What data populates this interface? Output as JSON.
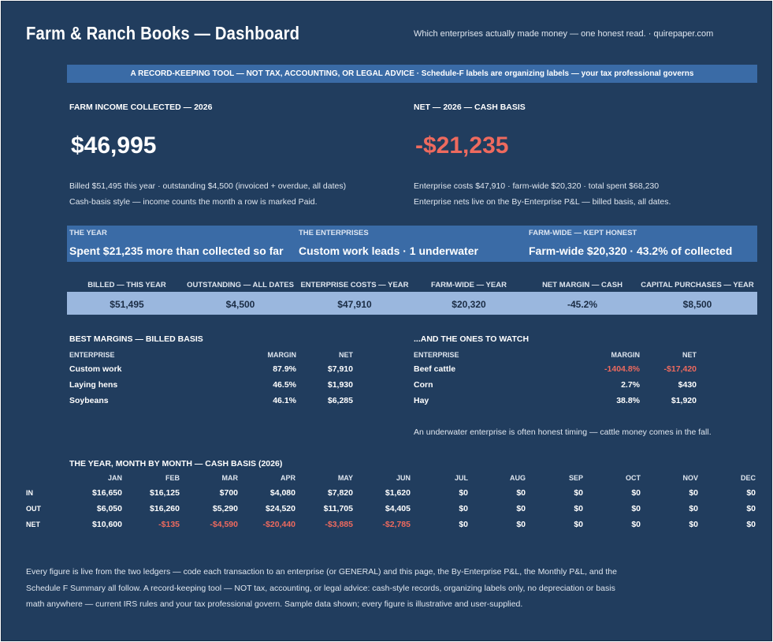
{
  "header": {
    "title": "Farm & Ranch Books — Dashboard",
    "tagline": "Which enterprises actually made money — one honest read.  ·  quirepaper.com"
  },
  "banner": "A RECORD-KEEPING TOOL — NOT TAX, ACCOUNTING, OR LEGAL ADVICE  ·  Schedule-F labels are organizing labels — your tax professional governs",
  "income": {
    "heading": "FARM INCOME COLLECTED — 2026",
    "value": "$46,995",
    "line1": "Billed $51,495 this year  ·  outstanding $4,500 (invoiced + overdue, all dates)",
    "line2": "Cash-basis style — income counts the month a row is marked Paid."
  },
  "net": {
    "heading": "NET — 2026 — CASH BASIS",
    "value": "-$21,235",
    "line1": "Enterprise costs $47,910  ·  farm-wide $20,320  ·  total spent $68,230",
    "line2": "Enterprise nets live on the By-Enterprise P&L — billed basis, all dates."
  },
  "strip": [
    {
      "label": "THE YEAR",
      "value": "Spent $21,235 more than collected so far"
    },
    {
      "label": "THE ENTERPRISES",
      "value": "Custom work leads · 1 underwater"
    },
    {
      "label": "FARM-WIDE — KEPT HONEST",
      "value": "Farm-wide $20,320 · 43.2% of collected"
    }
  ],
  "kpis": [
    {
      "label": "BILLED — THIS YEAR",
      "value": "$51,495"
    },
    {
      "label": "OUTSTANDING — ALL DATES",
      "value": "$4,500"
    },
    {
      "label": "ENTERPRISE COSTS — YEAR",
      "value": "$47,910"
    },
    {
      "label": "FARM-WIDE — YEAR",
      "value": "$20,320"
    },
    {
      "label": "NET MARGIN — CASH",
      "value": "-45.2%"
    },
    {
      "label": "CAPITAL PURCHASES — YEAR",
      "value": "$8,500"
    }
  ],
  "best": {
    "heading": "BEST MARGINS — BILLED BASIS",
    "col_enterprise": "ENTERPRISE",
    "col_margin": "MARGIN",
    "col_net": "NET",
    "rows": [
      {
        "name": "Custom work",
        "margin": "87.9%",
        "net": "$7,910"
      },
      {
        "name": "Laying hens",
        "margin": "46.5%",
        "net": "$1,930"
      },
      {
        "name": "Soybeans",
        "margin": "46.1%",
        "net": "$6,285"
      }
    ]
  },
  "watch": {
    "heading": "...AND THE ONES TO WATCH",
    "col_enterprise": "ENTERPRISE",
    "col_margin": "MARGIN",
    "col_net": "NET",
    "rows": [
      {
        "name": "Beef cattle",
        "margin": "-1404.8%",
        "net": "-$17,420",
        "negative": true
      },
      {
        "name": "Corn",
        "margin": "2.7%",
        "net": "$430",
        "negative": false
      },
      {
        "name": "Hay",
        "margin": "38.8%",
        "net": "$1,920",
        "negative": false
      }
    ],
    "note": "An underwater enterprise is often honest timing — cattle money comes in the fall."
  },
  "monthly": {
    "heading": "THE YEAR, MONTH BY MONTH — CASH BASIS (2026)",
    "months": [
      "JAN",
      "FEB",
      "MAR",
      "APR",
      "MAY",
      "JUN",
      "JUL",
      "AUG",
      "SEP",
      "OCT",
      "NOV",
      "DEC"
    ],
    "row_labels": [
      "IN",
      "OUT",
      "NET"
    ],
    "in": [
      "$16,650",
      "$16,125",
      "$700",
      "$4,080",
      "$7,820",
      "$1,620",
      "$0",
      "$0",
      "$0",
      "$0",
      "$0",
      "$0"
    ],
    "out": [
      "$6,050",
      "$16,260",
      "$5,290",
      "$24,520",
      "$11,705",
      "$4,405",
      "$0",
      "$0",
      "$0",
      "$0",
      "$0",
      "$0"
    ],
    "net": [
      "$10,600",
      "-$135",
      "-$4,590",
      "-$20,440",
      "-$3,885",
      "-$2,785",
      "$0",
      "$0",
      "$0",
      "$0",
      "$0",
      "$0"
    ]
  },
  "footer": {
    "line1": "Every figure is live from the two ledgers — code each transaction to an enterprise (or GENERAL) and this page, the By-Enterprise P&L, the Monthly P&L, and the",
    "line2": "Schedule F Summary all follow. A record-keeping tool — NOT tax, accounting, or legal advice: cash-style records, organizing labels only, no depreciation or basis",
    "line3": "math anywhere — current IRS rules and your tax professional govern. Sample data shown; every figure is illustrative and user-supplied."
  },
  "colors": {
    "background": "#213d5e",
    "banner": "#3a6ba6",
    "kpi_bar": "#9ab7de",
    "negative": "#ee6a5e"
  }
}
